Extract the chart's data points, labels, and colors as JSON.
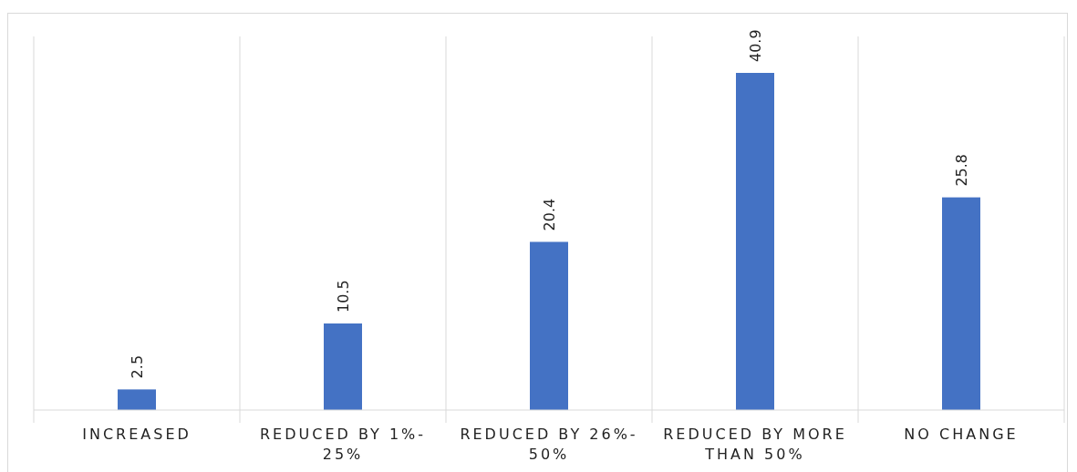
{
  "chart_data": {
    "type": "bar",
    "categories": [
      "INCREASED",
      "REDUCED BY 1%-25%",
      "REDUCED BY 26%-50%",
      "REDUCED BY MORE THAN 50%",
      "NO CHANGE"
    ],
    "values": [
      2.5,
      10.5,
      20.4,
      40.9,
      25.8
    ],
    "color": "#4472c4",
    "data_labels": true,
    "grid": "x"
  }
}
